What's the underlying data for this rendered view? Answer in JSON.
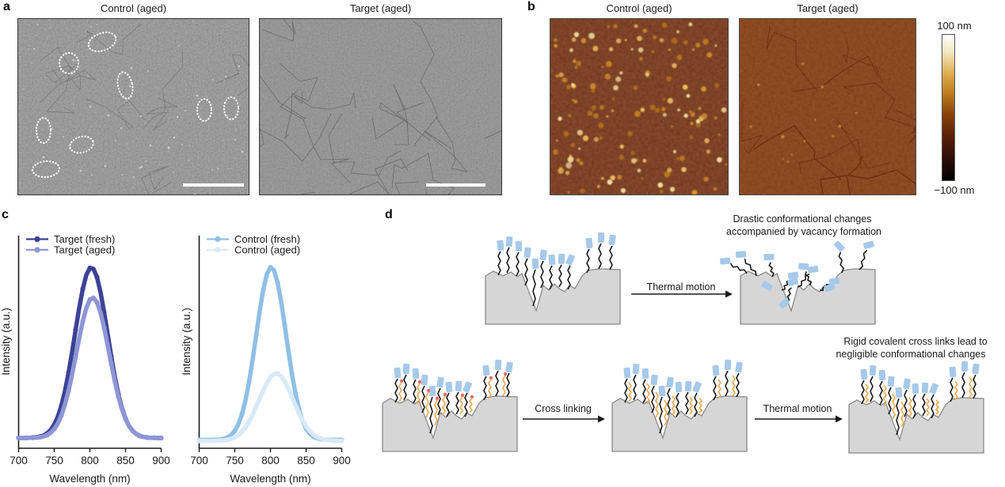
{
  "figure_labels": {
    "a": "a",
    "b": "b",
    "c": "c",
    "d": "d"
  },
  "panel_a": {
    "left_title": "Control (aged)",
    "right_title": "Target (aged)"
  },
  "panel_b": {
    "left_title": "Control (aged)",
    "right_title": "Target (aged)",
    "colorbar_max": "100 nm",
    "colorbar_min": "−100 nm"
  },
  "panel_d": {
    "arrow_thermal_top": "Thermal motion",
    "arrow_cross": "Cross linking",
    "arrow_thermal_bottom": "Thermal motion",
    "caption_drastic_1": "Drastic conformational changes",
    "caption_drastic_2": "accompanied by vacancy formation",
    "caption_rigid_1": "Rigid covalent cross links lead to",
    "caption_rigid_2": "negligible conformational changes"
  },
  "colors": {
    "target_fresh": "#3d4296",
    "target_aged": "#8e96d6",
    "control_fresh": "#8fc0e4",
    "control_aged": "#d9e9f6",
    "axis": "#1a1a1a",
    "block_fill": "#d6d6d6",
    "block_stroke": "#8a8a8a",
    "chain_black": "#1a1a1a",
    "chain_orange": "#f0a852",
    "head_blue": "#a6c9e9",
    "reactive_red": "#ee6868"
  },
  "chart_data": [
    {
      "type": "line",
      "panel": "c-left",
      "x_label": "Wavelength (nm)",
      "y_label": "Intensity (a.u.)",
      "x_ticks": [
        700,
        750,
        800,
        850,
        900
      ],
      "x_range": [
        700,
        900
      ],
      "y_range": [
        0,
        1
      ],
      "grid": false,
      "legend_position": "top-left",
      "x": [
        700,
        705,
        710,
        715,
        720,
        725,
        730,
        735,
        740,
        745,
        750,
        755,
        760,
        765,
        770,
        775,
        780,
        785,
        790,
        795,
        800,
        805,
        810,
        815,
        820,
        825,
        830,
        835,
        840,
        845,
        850,
        855,
        860,
        865,
        870,
        875,
        880,
        885,
        890,
        895,
        900
      ],
      "series": [
        {
          "name": "Target (fresh)",
          "color": "#3d4296",
          "values": [
            0.05,
            0.05,
            0.05,
            0.051,
            0.052,
            0.054,
            0.057,
            0.063,
            0.074,
            0.092,
            0.12,
            0.162,
            0.22,
            0.297,
            0.392,
            0.502,
            0.62,
            0.735,
            0.835,
            0.909,
            0.946,
            0.942,
            0.897,
            0.817,
            0.712,
            0.596,
            0.479,
            0.371,
            0.28,
            0.207,
            0.152,
            0.113,
            0.088,
            0.071,
            0.061,
            0.056,
            0.053,
            0.051,
            0.051,
            0.05,
            0.05
          ]
        },
        {
          "name": "Target (aged)",
          "color": "#8e96d6",
          "values": [
            0.05,
            0.05,
            0.05,
            0.051,
            0.051,
            0.052,
            0.054,
            0.058,
            0.065,
            0.078,
            0.097,
            0.126,
            0.169,
            0.226,
            0.298,
            0.384,
            0.479,
            0.576,
            0.665,
            0.735,
            0.779,
            0.789,
            0.765,
            0.71,
            0.631,
            0.538,
            0.441,
            0.348,
            0.268,
            0.201,
            0.15,
            0.113,
            0.088,
            0.072,
            0.062,
            0.056,
            0.053,
            0.051,
            0.051,
            0.05,
            0.05
          ]
        }
      ]
    },
    {
      "type": "line",
      "panel": "c-right",
      "x_label": "Wavelength (nm)",
      "y_label": "Intensity (a.u.)",
      "x_ticks": [
        700,
        750,
        800,
        850,
        900
      ],
      "x_range": [
        700,
        900
      ],
      "y_range": [
        0,
        1
      ],
      "grid": false,
      "legend_position": "top-left",
      "x": [
        700,
        705,
        710,
        715,
        720,
        725,
        730,
        735,
        740,
        745,
        750,
        755,
        760,
        765,
        770,
        775,
        780,
        785,
        790,
        795,
        800,
        805,
        810,
        815,
        820,
        825,
        830,
        835,
        840,
        845,
        850,
        855,
        860,
        865,
        870,
        875,
        880,
        885,
        890,
        895,
        900
      ],
      "series": [
        {
          "name": "Control (fresh)",
          "color": "#8fc0e4",
          "values": [
            0.04,
            0.04,
            0.04,
            0.04,
            0.041,
            0.041,
            0.043,
            0.047,
            0.053,
            0.066,
            0.088,
            0.123,
            0.175,
            0.249,
            0.346,
            0.463,
            0.592,
            0.721,
            0.833,
            0.914,
            0.949,
            0.934,
            0.87,
            0.769,
            0.644,
            0.513,
            0.391,
            0.286,
            0.202,
            0.141,
            0.1,
            0.073,
            0.058,
            0.049,
            0.044,
            0.042,
            0.041,
            0.04,
            0.04,
            0.04,
            0.04
          ]
        },
        {
          "name": "Control (aged)",
          "color": "#d9e9f6",
          "values": [
            0.035,
            0.035,
            0.035,
            0.035,
            0.035,
            0.036,
            0.037,
            0.038,
            0.041,
            0.046,
            0.054,
            0.066,
            0.083,
            0.106,
            0.137,
            0.173,
            0.215,
            0.259,
            0.303,
            0.341,
            0.371,
            0.387,
            0.389,
            0.375,
            0.348,
            0.311,
            0.268,
            0.224,
            0.181,
            0.143,
            0.112,
            0.087,
            0.069,
            0.056,
            0.048,
            0.042,
            0.039,
            0.037,
            0.036,
            0.035,
            0.035
          ]
        }
      ]
    }
  ]
}
